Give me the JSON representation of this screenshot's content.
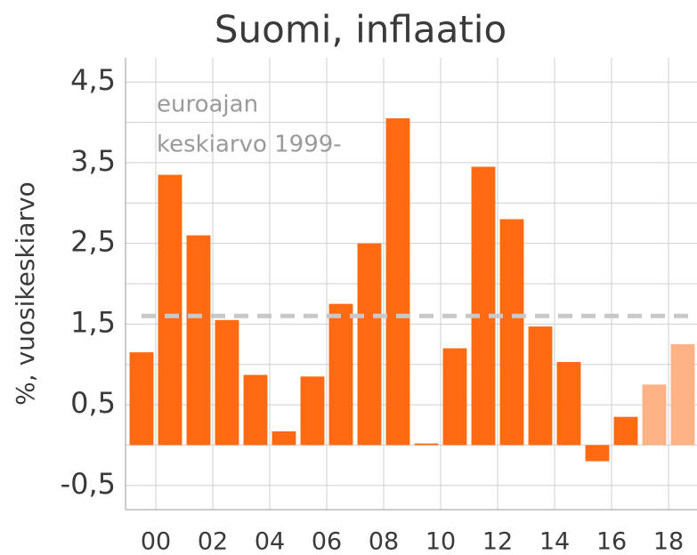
{
  "chart_data": {
    "type": "bar",
    "title": "Suomi, inflaatio",
    "y_label": "%, vuosikeskiarvo",
    "annotation": [
      "euroajan",
      "keskiarvo 1999-"
    ],
    "x": [
      1999,
      2000,
      2001,
      2002,
      2003,
      2004,
      2005,
      2006,
      2007,
      2008,
      2009,
      2010,
      2011,
      2012,
      2013,
      2014,
      2015,
      2016,
      2017,
      2018
    ],
    "values": [
      1.15,
      3.35,
      2.6,
      1.55,
      0.87,
      0.17,
      0.85,
      1.75,
      2.5,
      4.05,
      0.02,
      1.2,
      3.45,
      2.8,
      1.47,
      1.03,
      -0.2,
      0.35,
      0.75,
      1.25
    ],
    "color": "#ff6a13",
    "forecast_color": "#ffb285",
    "forecast_from": 2017,
    "average": 1.6,
    "average_color": "#c8c8c8",
    "xlim": [
      1999,
      2019
    ],
    "xticks": [
      {
        "value": 2000,
        "label": "00"
      },
      {
        "value": 2002,
        "label": "02"
      },
      {
        "value": 2004,
        "label": "04"
      },
      {
        "value": 2006,
        "label": "06"
      },
      {
        "value": 2008,
        "label": "08"
      },
      {
        "value": 2010,
        "label": "10"
      },
      {
        "value": 2012,
        "label": "12"
      },
      {
        "value": 2014,
        "label": "14"
      },
      {
        "value": 2016,
        "label": "16"
      },
      {
        "value": 2018,
        "label": "18"
      }
    ],
    "ylim": [
      -0.8,
      4.8
    ],
    "yticks": [
      {
        "value": -0.5,
        "label": "-0,5"
      },
      {
        "value": 0.5,
        "label": "0,5"
      },
      {
        "value": 1.5,
        "label": "1,5"
      },
      {
        "value": 2.5,
        "label": "2,5"
      },
      {
        "value": 3.5,
        "label": "3,5"
      },
      {
        "value": 4.5,
        "label": "4,5"
      }
    ],
    "minor_yticks": [
      0,
      1,
      2,
      3,
      4
    ],
    "grid": true
  }
}
